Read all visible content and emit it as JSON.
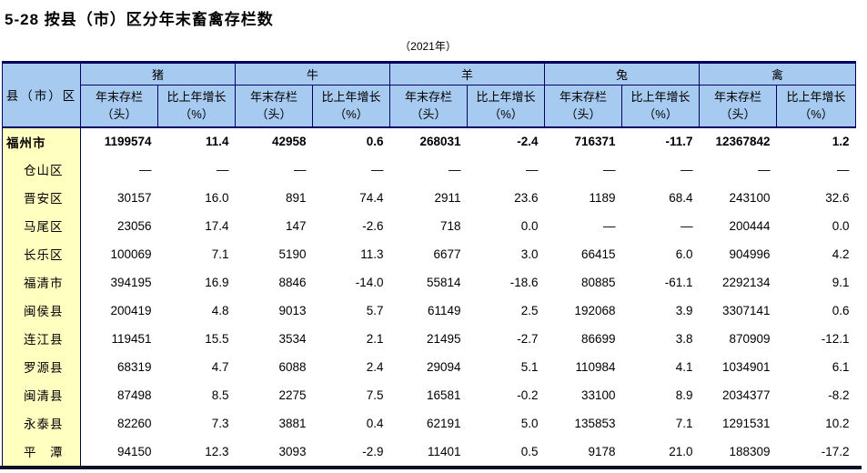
{
  "page": {
    "title": "5-28 按县（市）区分年末畜禽存栏数",
    "subtitle": "（2021年）"
  },
  "table": {
    "corner_header": "县（市）区",
    "groups": [
      {
        "label": "猪"
      },
      {
        "label": "牛"
      },
      {
        "label": "羊"
      },
      {
        "label": "兔"
      },
      {
        "label": "禽"
      }
    ],
    "sub_headers": {
      "stock_line1": "年末存栏",
      "stock_line2": "（头）",
      "growth_line1": "比上年增长",
      "growth_line2": "（%）"
    },
    "rows": [
      {
        "region": "福州市",
        "bold": true,
        "values": [
          "1199574",
          "11.4",
          "42958",
          "0.6",
          "268031",
          "-2.4",
          "716371",
          "-11.7",
          "12367842",
          "1.2"
        ]
      },
      {
        "region": "仓山区",
        "bold": false,
        "values": [
          "—",
          "—",
          "—",
          "—",
          "—",
          "—",
          "—",
          "—",
          "—",
          "—"
        ]
      },
      {
        "region": "晋安区",
        "bold": false,
        "values": [
          "30157",
          "16.0",
          "891",
          "74.4",
          "2911",
          "23.6",
          "1189",
          "68.4",
          "243100",
          "32.6"
        ]
      },
      {
        "region": "马尾区",
        "bold": false,
        "values": [
          "23056",
          "17.4",
          "147",
          "-2.6",
          "718",
          "0.0",
          "—",
          "—",
          "200444",
          "0.0"
        ]
      },
      {
        "region": "长乐区",
        "bold": false,
        "values": [
          "100069",
          "7.1",
          "5190",
          "11.3",
          "6677",
          "3.0",
          "66415",
          "6.0",
          "904996",
          "4.2"
        ]
      },
      {
        "region": "福清市",
        "bold": false,
        "values": [
          "394195",
          "16.9",
          "8846",
          "-14.0",
          "55814",
          "-18.6",
          "80885",
          "-61.1",
          "2292134",
          "9.1"
        ]
      },
      {
        "region": "闽侯县",
        "bold": false,
        "values": [
          "200419",
          "4.8",
          "9013",
          "5.7",
          "61149",
          "2.5",
          "192068",
          "3.9",
          "3307141",
          "0.6"
        ]
      },
      {
        "region": "连江县",
        "bold": false,
        "values": [
          "119451",
          "15.5",
          "3534",
          "2.1",
          "21495",
          "-2.7",
          "86699",
          "3.8",
          "870909",
          "-12.1"
        ]
      },
      {
        "region": "罗源县",
        "bold": false,
        "values": [
          "68319",
          "4.7",
          "6088",
          "2.4",
          "29094",
          "5.1",
          "110984",
          "4.1",
          "1034901",
          "6.1"
        ]
      },
      {
        "region": "闽清县",
        "bold": false,
        "values": [
          "87498",
          "8.5",
          "2275",
          "7.5",
          "16581",
          "-0.2",
          "33100",
          "8.9",
          "2034377",
          "-8.2"
        ]
      },
      {
        "region": "永泰县",
        "bold": false,
        "values": [
          "82260",
          "7.3",
          "3881",
          "0.4",
          "62191",
          "5.0",
          "135853",
          "7.1",
          "1291531",
          "10.2"
        ]
      },
      {
        "region": "平　潭",
        "bold": false,
        "values": [
          "94150",
          "12.3",
          "3093",
          "-2.9",
          "11401",
          "0.5",
          "9178",
          "21.0",
          "188309",
          "-17.2"
        ]
      }
    ],
    "colors": {
      "header_bg": "#A6CAF0",
      "region_bg": "#FFFFC0",
      "border": "#000060",
      "bottom_bar": "#0b1026"
    }
  }
}
